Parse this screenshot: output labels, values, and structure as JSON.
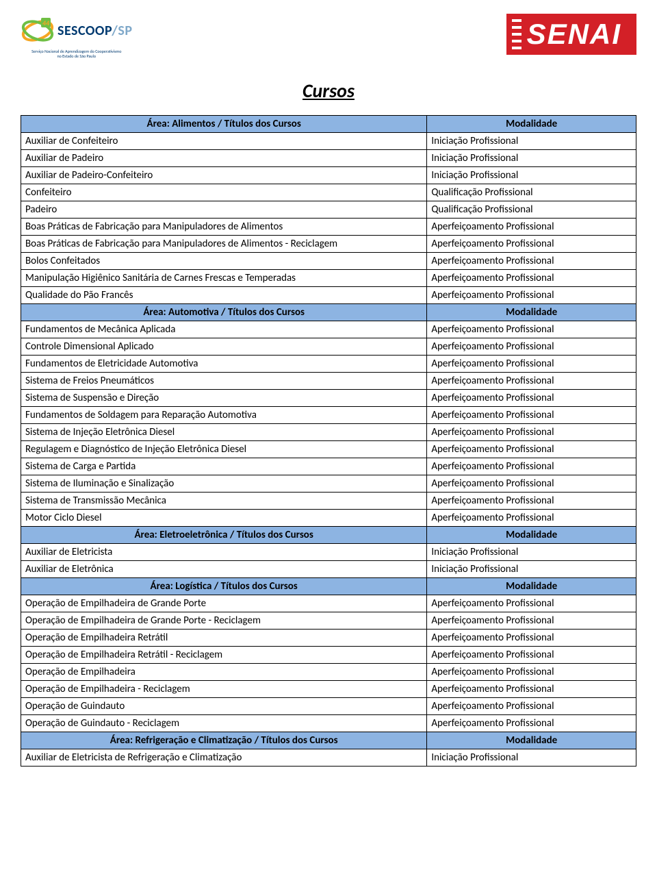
{
  "header": {
    "sescoop_brand": "SESCOOP",
    "sescoop_suffix": "/SP",
    "sescoop_tagline1": "Serviço Nacional de Aprendizagem do Cooperativismo",
    "sescoop_tagline2": "no Estado de São Paulo",
    "senai_brand": "SENAI"
  },
  "title": "Cursos",
  "modalidade_header": "Modalidade",
  "mod": {
    "iniciacao": "Iniciação Profissional",
    "qualificacao": "Qualificação Profissional",
    "aperfeicoamento": "Aperfeiçoamento Profissional"
  },
  "sections": [
    {
      "area": "Área: Alimentos / Títulos dos Cursos",
      "rows": [
        {
          "name": "Auxiliar de Confeiteiro",
          "mod": "Iniciação Profissional"
        },
        {
          "name": "Auxiliar de Padeiro",
          "mod": "Iniciação Profissional"
        },
        {
          "name": "Auxiliar de Padeiro-Confeiteiro",
          "mod": "Iniciação Profissional"
        },
        {
          "name": "Confeiteiro",
          "mod": "Qualificação Profissional"
        },
        {
          "name": "Padeiro",
          "mod": "Qualificação Profissional"
        },
        {
          "name": "Boas Práticas de Fabricação para Manipuladores de Alimentos",
          "mod": "Aperfeiçoamento Profissional"
        },
        {
          "name": "Boas Práticas de Fabricação para Manipuladores de Alimentos - Reciclagem",
          "mod": "Aperfeiçoamento Profissional"
        },
        {
          "name": "Bolos Confeitados",
          "mod": "Aperfeiçoamento Profissional"
        },
        {
          "name": "Manipulação Higiênico Sanitária de Carnes Frescas e Temperadas",
          "mod": "Aperfeiçoamento Profissional"
        },
        {
          "name": "Qualidade do Pão Francês",
          "mod": "Aperfeiçoamento Profissional"
        }
      ]
    },
    {
      "area": "Área: Automotiva / Títulos dos Cursos",
      "rows": [
        {
          "name": "Fundamentos de Mecânica Aplicada",
          "mod": "Aperfeiçoamento Profissional"
        },
        {
          "name": "Controle Dimensional Aplicado",
          "mod": "Aperfeiçoamento Profissional"
        },
        {
          "name": "Fundamentos de Eletricidade Automotiva",
          "mod": "Aperfeiçoamento Profissional"
        },
        {
          "name": "Sistema de Freios Pneumáticos",
          "mod": "Aperfeiçoamento Profissional"
        },
        {
          "name": "Sistema de Suspensão e Direção",
          "mod": "Aperfeiçoamento Profissional"
        },
        {
          "name": "Fundamentos de Soldagem para Reparação Automotiva",
          "mod": "Aperfeiçoamento Profissional"
        },
        {
          "name": "Sistema de Injeção Eletrônica Diesel",
          "mod": "Aperfeiçoamento Profissional"
        },
        {
          "name": "Regulagem e Diagnóstico de Injeção Eletrônica Diesel",
          "mod": "Aperfeiçoamento Profissional"
        },
        {
          "name": "Sistema de Carga e Partida",
          "mod": "Aperfeiçoamento Profissional"
        },
        {
          "name": "Sistema de Iluminação e Sinalização",
          "mod": "Aperfeiçoamento Profissional"
        },
        {
          "name": "Sistema de Transmissão Mecânica",
          "mod": "Aperfeiçoamento Profissional"
        },
        {
          "name": "Motor Ciclo Diesel",
          "mod": "Aperfeiçoamento Profissional"
        }
      ]
    },
    {
      "area": "Área: Eletroeletrônica / Títulos dos Cursos",
      "rows": [
        {
          "name": "Auxiliar de Eletricista",
          "mod": "Iniciação Profissional"
        },
        {
          "name": "Auxiliar de Eletrônica",
          "mod": "Iniciação Profissional"
        }
      ]
    },
    {
      "area": "Área: Logística / Títulos dos Cursos",
      "rows": [
        {
          "name": "Operação de Empilhadeira de Grande Porte",
          "mod": "Aperfeiçoamento Profissional"
        },
        {
          "name": "Operação de Empilhadeira de Grande Porte - Reciclagem",
          "mod": "Aperfeiçoamento Profissional"
        },
        {
          "name": "Operação de Empilhadeira Retrátil",
          "mod": "Aperfeiçoamento Profissional"
        },
        {
          "name": "Operação de Empilhadeira Retrátil - Reciclagem",
          "mod": "Aperfeiçoamento Profissional"
        },
        {
          "name": "Operação de Empilhadeira",
          "mod": "Aperfeiçoamento Profissional"
        },
        {
          "name": "Operação de Empilhadeira - Reciclagem",
          "mod": "Aperfeiçoamento Profissional"
        },
        {
          "name": "Operação de Guindauto",
          "mod": "Aperfeiçoamento Profissional"
        },
        {
          "name": "Operação de Guindauto - Reciclagem",
          "mod": "Aperfeiçoamento Profissional"
        }
      ]
    },
    {
      "area": "Área: Refrigeração e Climatização / Títulos dos Cursos",
      "rows": [
        {
          "name": "Auxiliar de Eletricista de Refrigeração e Climatização",
          "mod": "Iniciação Profissional"
        }
      ]
    }
  ],
  "colors": {
    "section_bg": "#8db4e2",
    "border": "#000000",
    "senai_bg": "#d32027",
    "sescoop_dark": "#003a70",
    "sescoop_light": "#7fa8c9"
  }
}
